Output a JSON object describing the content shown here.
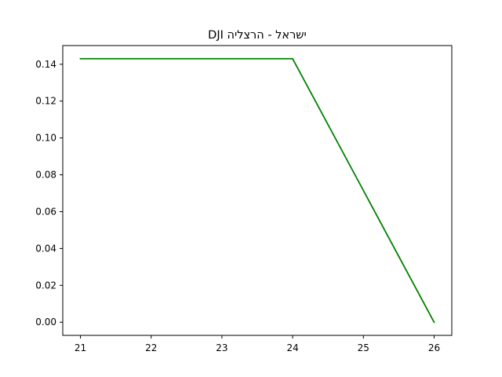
{
  "chart_data": {
    "type": "line",
    "title": "DJI ישראל - הרצליה",
    "xlabel": "",
    "ylabel": "",
    "x": [
      21,
      22,
      23,
      24,
      25,
      26
    ],
    "series": [
      {
        "values": [
          0.143,
          0.143,
          0.143,
          0.143,
          0.0715,
          0.0
        ],
        "color": "#008000"
      }
    ],
    "xlim": [
      20.75,
      26.25
    ],
    "ylim": [
      -0.00715,
      0.15015
    ],
    "xticks": [
      21,
      22,
      23,
      24,
      25,
      26
    ],
    "xtick_labels": [
      "21",
      "22",
      "23",
      "24",
      "25",
      "26"
    ],
    "yticks": [
      0.0,
      0.02,
      0.04,
      0.06,
      0.08,
      0.1,
      0.12,
      0.14
    ],
    "ytick_labels": [
      "0.00",
      "0.02",
      "0.04",
      "0.06",
      "0.08",
      "0.10",
      "0.12",
      "0.14"
    ],
    "grid": false,
    "legend": "none"
  }
}
